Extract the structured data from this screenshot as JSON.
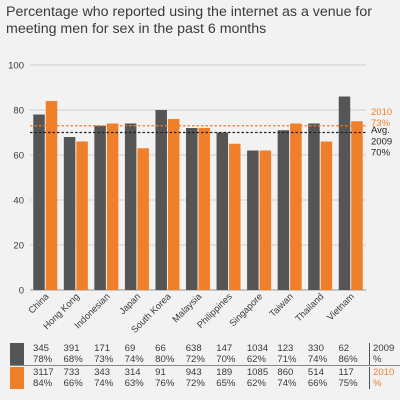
{
  "chart_data": {
    "type": "bar",
    "title": "Percentage who reported using the internet as a venue for meeting men for sex in the past 6 months",
    "categories": [
      "China",
      "Hong Kong",
      "Indonesian",
      "Japan",
      "South Korea",
      "Malaysia",
      "Philippines",
      "Singapore",
      "Taiwan",
      "Thailand",
      "Vietnam"
    ],
    "series": [
      {
        "name": "2009",
        "color": "#555555",
        "values": [
          78,
          68,
          73,
          74,
          80,
          72,
          70,
          62,
          71,
          74,
          86
        ],
        "n": [
          "345",
          "391",
          "171",
          "69",
          "66",
          "638",
          "147",
          "1034",
          "123",
          "330",
          "62"
        ],
        "pct": [
          "78%",
          "68%",
          "73%",
          "74%",
          "80%",
          "72%",
          "70%",
          "62%",
          "71%",
          "74%",
          "86%"
        ]
      },
      {
        "name": "2010",
        "color": "#f07f2a",
        "values": [
          84,
          66,
          74,
          63,
          76,
          72,
          65,
          62,
          74,
          66,
          75
        ],
        "n": [
          "3117",
          "733",
          "343",
          "314",
          "91",
          "943",
          "189",
          "1085",
          "860",
          "514",
          "117"
        ],
        "pct": [
          "84%",
          "66%",
          "74%",
          "63%",
          "76%",
          "72%",
          "65%",
          "62%",
          "74%",
          "66%",
          "75%"
        ]
      }
    ],
    "ylim": [
      0,
      100
    ],
    "yticks": [
      "0",
      "20",
      "40",
      "60",
      "80",
      "100"
    ],
    "grid": true,
    "averages": [
      {
        "year": "2010",
        "value": 73,
        "label": "73%",
        "color": "#f07f2a"
      },
      {
        "year": "2009",
        "value": 70,
        "label": "70%",
        "color": "#222222"
      }
    ],
    "avg_label": "Avg.",
    "table_units": {
      "year_2009": "2009",
      "year_2010": "2010",
      "percent": "%"
    }
  }
}
